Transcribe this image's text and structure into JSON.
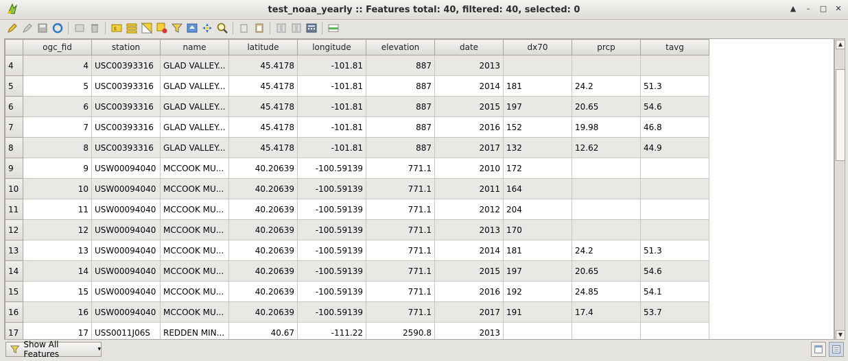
{
  "window": {
    "title": "test_noaa_yearly :: Features total: 40, filtered: 40, selected: 0",
    "buttons": [
      "up-arrow-icon",
      "minimize-icon",
      "maximize-icon",
      "close-icon"
    ]
  },
  "toolbar": {
    "icons": [
      "edit-pencil-icon",
      "multi-edit-icon",
      "save-edits-icon",
      "reload-icon",
      "add-feature-icon",
      "delete-feature-icon",
      "select-expression-icon",
      "select-all-icon",
      "invert-selection-icon",
      "deselect-icon",
      "filter-icon",
      "move-selection-top-icon",
      "pan-to-selection-icon",
      "zoom-to-selection-icon",
      "copy-icon",
      "paste-icon",
      "new-field-icon",
      "delete-field-icon",
      "field-calculator-icon",
      "conditional-formatting-icon"
    ]
  },
  "table": {
    "columns": [
      "ogc_fid",
      "station",
      "name",
      "latitude",
      "longitude",
      "elevation",
      "date",
      "dx70",
      "prcp",
      "tavg"
    ],
    "rows": [
      {
        "idx": "4",
        "ogc_fid": "4",
        "station": "USC00393316",
        "name": "GLAD VALLEY...",
        "latitude": "45.4178",
        "longitude": "-101.81",
        "elevation": "887",
        "date": "2013",
        "dx70": "",
        "prcp": "",
        "tavg": ""
      },
      {
        "idx": "5",
        "ogc_fid": "5",
        "station": "USC00393316",
        "name": "GLAD VALLEY...",
        "latitude": "45.4178",
        "longitude": "-101.81",
        "elevation": "887",
        "date": "2014",
        "dx70": "181",
        "prcp": "24.2",
        "tavg": "51.3"
      },
      {
        "idx": "6",
        "ogc_fid": "6",
        "station": "USC00393316",
        "name": "GLAD VALLEY...",
        "latitude": "45.4178",
        "longitude": "-101.81",
        "elevation": "887",
        "date": "2015",
        "dx70": "197",
        "prcp": "20.65",
        "tavg": "54.6"
      },
      {
        "idx": "7",
        "ogc_fid": "7",
        "station": "USC00393316",
        "name": "GLAD VALLEY...",
        "latitude": "45.4178",
        "longitude": "-101.81",
        "elevation": "887",
        "date": "2016",
        "dx70": "152",
        "prcp": "19.98",
        "tavg": "46.8"
      },
      {
        "idx": "8",
        "ogc_fid": "8",
        "station": "USC00393316",
        "name": "GLAD VALLEY...",
        "latitude": "45.4178",
        "longitude": "-101.81",
        "elevation": "887",
        "date": "2017",
        "dx70": "132",
        "prcp": "12.62",
        "tavg": "44.9"
      },
      {
        "idx": "9",
        "ogc_fid": "9",
        "station": "USW00094040",
        "name": "MCCOOK MU...",
        "latitude": "40.20639",
        "longitude": "-100.59139",
        "elevation": "771.1",
        "date": "2010",
        "dx70": "172",
        "prcp": "",
        "tavg": ""
      },
      {
        "idx": "10",
        "ogc_fid": "10",
        "station": "USW00094040",
        "name": "MCCOOK MU...",
        "latitude": "40.20639",
        "longitude": "-100.59139",
        "elevation": "771.1",
        "date": "2011",
        "dx70": "164",
        "prcp": "",
        "tavg": ""
      },
      {
        "idx": "11",
        "ogc_fid": "11",
        "station": "USW00094040",
        "name": "MCCOOK MU...",
        "latitude": "40.20639",
        "longitude": "-100.59139",
        "elevation": "771.1",
        "date": "2012",
        "dx70": "204",
        "prcp": "",
        "tavg": ""
      },
      {
        "idx": "12",
        "ogc_fid": "12",
        "station": "USW00094040",
        "name": "MCCOOK MU...",
        "latitude": "40.20639",
        "longitude": "-100.59139",
        "elevation": "771.1",
        "date": "2013",
        "dx70": "170",
        "prcp": "",
        "tavg": ""
      },
      {
        "idx": "13",
        "ogc_fid": "13",
        "station": "USW00094040",
        "name": "MCCOOK MU...",
        "latitude": "40.20639",
        "longitude": "-100.59139",
        "elevation": "771.1",
        "date": "2014",
        "dx70": "181",
        "prcp": "24.2",
        "tavg": "51.3"
      },
      {
        "idx": "14",
        "ogc_fid": "14",
        "station": "USW00094040",
        "name": "MCCOOK MU...",
        "latitude": "40.20639",
        "longitude": "-100.59139",
        "elevation": "771.1",
        "date": "2015",
        "dx70": "197",
        "prcp": "20.65",
        "tavg": "54.6"
      },
      {
        "idx": "15",
        "ogc_fid": "15",
        "station": "USW00094040",
        "name": "MCCOOK MU...",
        "latitude": "40.20639",
        "longitude": "-100.59139",
        "elevation": "771.1",
        "date": "2016",
        "dx70": "192",
        "prcp": "24.85",
        "tavg": "54.1"
      },
      {
        "idx": "16",
        "ogc_fid": "16",
        "station": "USW00094040",
        "name": "MCCOOK MU...",
        "latitude": "40.20639",
        "longitude": "-100.59139",
        "elevation": "771.1",
        "date": "2017",
        "dx70": "191",
        "prcp": "17.4",
        "tavg": "53.7"
      },
      {
        "idx": "17",
        "ogc_fid": "17",
        "station": "USS0011J06S",
        "name": "REDDEN MIN...",
        "latitude": "40.67",
        "longitude": "-111.22",
        "elevation": "2590.8",
        "date": "2013",
        "dx70": "",
        "prcp": "",
        "tavg": ""
      }
    ]
  },
  "footer": {
    "filter_label": "Show All Features",
    "view_buttons": [
      "table-view-icon",
      "form-view-icon"
    ]
  }
}
